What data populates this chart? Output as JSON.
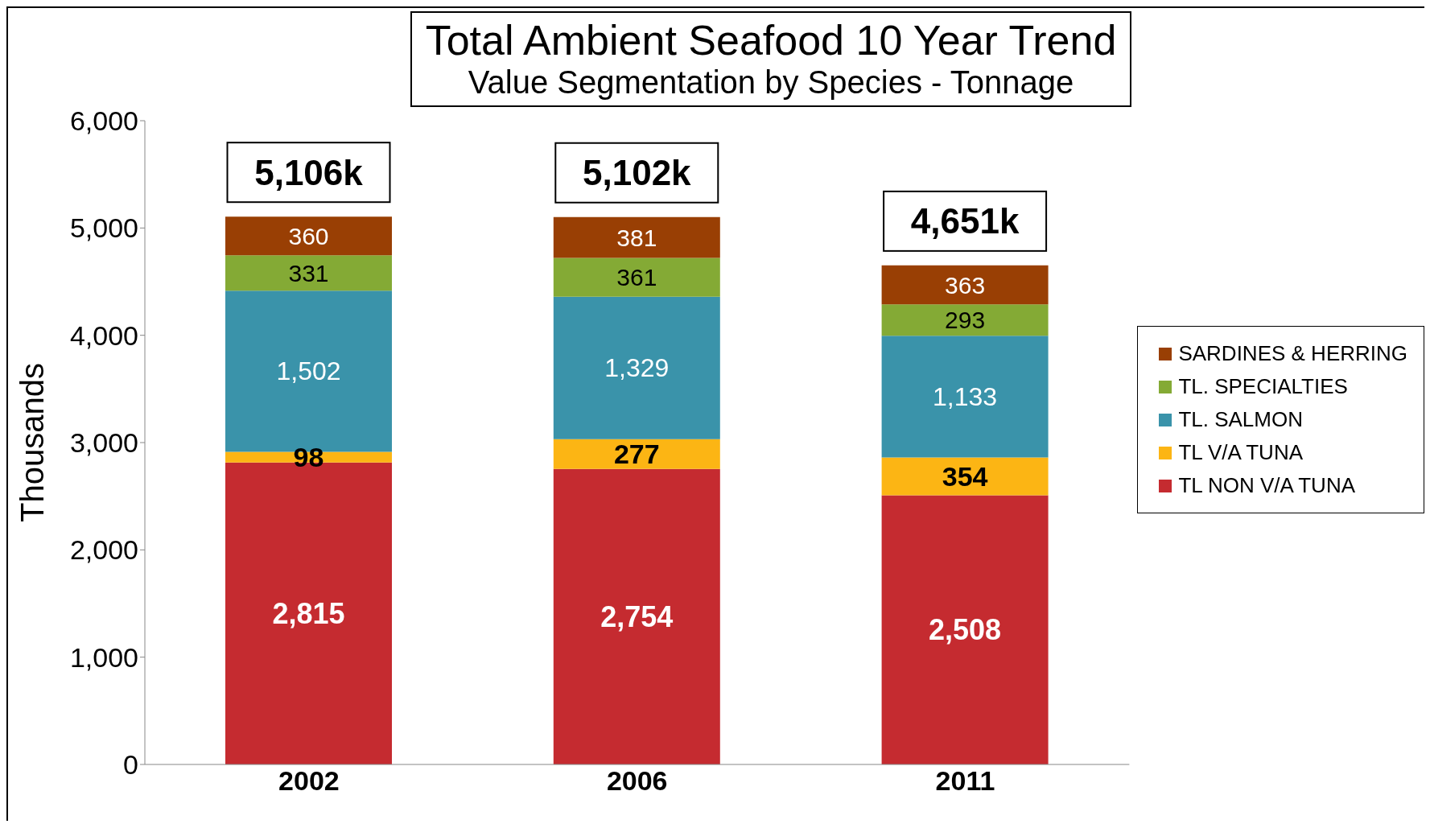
{
  "chart_data": {
    "type": "bar",
    "title": "Total Ambient Seafood 10 Year Trend",
    "subtitle": "Value Segmentation by Species - Tonnage",
    "ylabel": "Thousands",
    "categories": [
      "2002",
      "2006",
      "2011"
    ],
    "stacked": true,
    "series": [
      {
        "name": "TL NON V/A TUNA",
        "color": "#c52b30",
        "values": [
          2815,
          2754,
          2508
        ],
        "value_labels": [
          "2,815",
          "2,754",
          "2,508"
        ]
      },
      {
        "name": "TL V/A TUNA",
        "color": "#fcb514",
        "values": [
          98,
          277,
          354
        ],
        "value_labels": [
          "98",
          "277",
          "354"
        ]
      },
      {
        "name": "TL. SALMON",
        "color": "#3a93aa",
        "values": [
          1502,
          1329,
          1133
        ],
        "value_labels": [
          "1,502",
          "1,329",
          "1,133"
        ]
      },
      {
        "name": "TL. SPECIALTIES",
        "color": "#84aa35",
        "values": [
          331,
          361,
          293
        ],
        "value_labels": [
          "331",
          "361",
          "293"
        ]
      },
      {
        "name": "SARDINES & HERRING",
        "color": "#993f04",
        "values": [
          360,
          381,
          363
        ],
        "value_labels": [
          "360",
          "381",
          "363"
        ]
      }
    ],
    "ylim": [
      0,
      6000
    ],
    "yticks": [
      0,
      {
        "value": 1000,
        "label": "1,000"
      },
      {
        "value": 2000,
        "label": "2,000"
      },
      {
        "value": 3000,
        "label": "3,000"
      },
      {
        "value": 4000,
        "label": "4,000"
      },
      {
        "value": 5000,
        "label": "5,000"
      },
      {
        "value": 6000,
        "label": "6,000"
      }
    ],
    "totals": [
      "5,106k",
      "5,102k",
      "4,651k"
    ],
    "legend": "right"
  }
}
